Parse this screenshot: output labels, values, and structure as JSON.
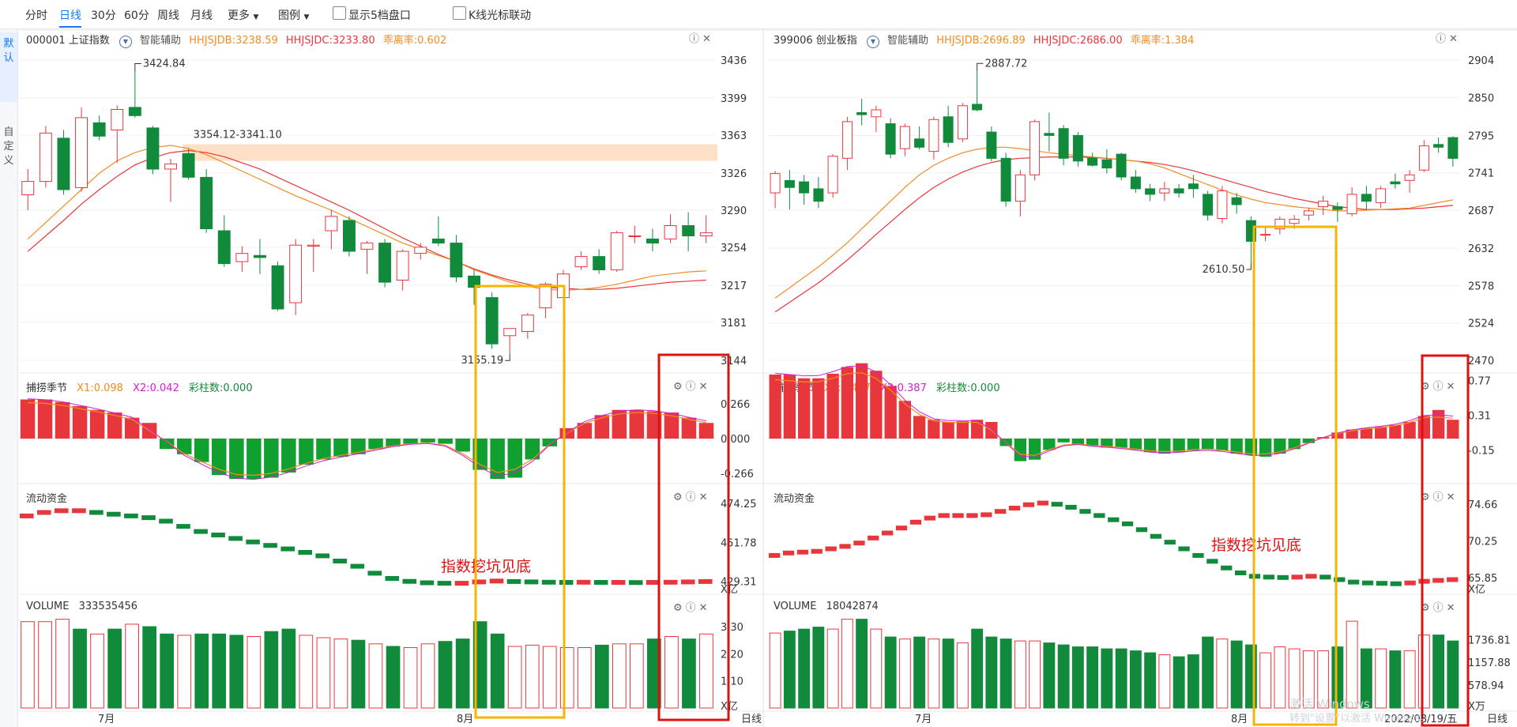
{
  "toolbar": {
    "items": [
      "分时",
      "日线",
      "30分",
      "60分",
      "周线",
      "月线",
      "更多",
      "图例"
    ],
    "active": "日线",
    "chk1": "显示5档盘口",
    "chk2": "K线光标联动"
  },
  "sidebar": {
    "tab1": "默认",
    "tab2": "自定义"
  },
  "panels": [
    {
      "code_name": "000001 上证指数",
      "assist": "智能辅助",
      "hhjsjdb": "HHJSJDB:3238.59",
      "hhjsjdc": "HHJSJDC:3233.80",
      "ratio": "乖离率:0.602",
      "price_ticks": [
        "3436",
        "3399",
        "3363",
        "3326",
        "3290",
        "3254",
        "3217",
        "3181",
        "3144"
      ],
      "high_label": "3424.84",
      "low_label": "3155.19",
      "zone_label": "3354.12-3341.10",
      "ind1": {
        "name": "捕捞季节",
        "x1": "X1:0.098",
        "x2": "X2:0.042",
        "bars": "彩柱数:0.000",
        "ticks": [
          "0.266",
          "0.000",
          "-0.266"
        ]
      },
      "ind2": {
        "name": "流动资金",
        "ticks": [
          "474.25",
          "451.78",
          "429.31"
        ],
        "unit": "X亿"
      },
      "vol": {
        "name": "VOLUME",
        "value": "333535456",
        "ticks": [
          "3.30",
          "2.20",
          "1.10"
        ],
        "unit": "X亿"
      },
      "x_labels": [
        "7月",
        "8月"
      ],
      "annotation": "指数挖坑见底"
    },
    {
      "code_name": "399006 创业板指",
      "assist": "智能辅助",
      "hhjsjdb": "HHJSJDB:2696.89",
      "hhjsjdc": "HHJSJDC:2686.00",
      "ratio": "乖离率:1.384",
      "price_ticks": [
        "2904",
        "2850",
        "2795",
        "2741",
        "2687",
        "2632",
        "2578",
        "2524",
        "2470"
      ],
      "high_label": "2887.72",
      "low_label": "2610.50",
      "zone_label": "",
      "ind1": {
        "name": "捕捞季节",
        "x1": "X1:0.487",
        "x2": "X2:0.387",
        "bars": "彩柱数:0.000",
        "ticks": [
          "0.77",
          "0.31",
          "-0.15"
        ]
      },
      "ind2": {
        "name": "流动资金",
        "ticks": [
          "74.66",
          "70.25",
          "65.85"
        ],
        "unit": "X亿"
      },
      "vol": {
        "name": "VOLUME",
        "value": "18042874",
        "ticks": [
          "1736.81",
          "1157.88",
          "578.94"
        ],
        "unit": "X万"
      },
      "x_labels": [
        "7月",
        "8月"
      ],
      "annotation": "指数挖坑见底",
      "date_label": "2022/08/19/五"
    }
  ],
  "axis_unit_label": "日线",
  "watermark": "激活 Windows 转到\"设置\"以激活 Windows。",
  "colors": {
    "up": "#e8373c",
    "down": "#118a3c",
    "ma_fast": "#f08c24",
    "ma_slow": "#e8373c",
    "zone": "#fde0c7",
    "highlight_orange": "#f4b400",
    "highlight_red": "#e01010"
  },
  "chart_data": [
    {
      "type": "candlestick",
      "title": "000001 上证指数",
      "ylim": [
        3144,
        3436
      ],
      "candles": [
        [
          3305,
          3330,
          3290,
          3318
        ],
        [
          3318,
          3372,
          3312,
          3365
        ],
        [
          3360,
          3368,
          3305,
          3310
        ],
        [
          3312,
          3390,
          3308,
          3380
        ],
        [
          3375,
          3382,
          3358,
          3362
        ],
        [
          3368,
          3392,
          3336,
          3388
        ],
        [
          3390,
          3424.84,
          3380,
          3382
        ],
        [
          3370,
          3372,
          3325,
          3330
        ],
        [
          3330,
          3340,
          3298,
          3335
        ],
        [
          3345,
          3350,
          3320,
          3322
        ],
        [
          3322,
          3330,
          3268,
          3272
        ],
        [
          3270,
          3285,
          3235,
          3238
        ],
        [
          3240,
          3255,
          3230,
          3248
        ],
        [
          3246,
          3262,
          3228,
          3244
        ],
        [
          3236,
          3240,
          3192,
          3194
        ],
        [
          3200,
          3262,
          3188,
          3256
        ],
        [
          3255,
          3262,
          3230,
          3256
        ],
        [
          3270,
          3290,
          3252,
          3284
        ],
        [
          3280,
          3284,
          3245,
          3250
        ],
        [
          3252,
          3260,
          3228,
          3258
        ],
        [
          3258,
          3262,
          3215,
          3220
        ],
        [
          3222,
          3252,
          3212,
          3250
        ],
        [
          3248,
          3258,
          3242,
          3254
        ],
        [
          3262,
          3284,
          3255,
          3258
        ],
        [
          3258,
          3266,
          3220,
          3225
        ],
        [
          3226,
          3232,
          3198,
          3215
        ],
        [
          3205,
          3210,
          3155.19,
          3160
        ],
        [
          3168,
          3175,
          3150,
          3175
        ],
        [
          3172,
          3190,
          3165,
          3188
        ],
        [
          3195,
          3220,
          3185,
          3218
        ],
        [
          3205,
          3232,
          3200,
          3228
        ],
        [
          3235,
          3250,
          3232,
          3245
        ],
        [
          3245,
          3252,
          3228,
          3232
        ],
        [
          3232,
          3270,
          3230,
          3268
        ],
        [
          3265,
          3275,
          3258,
          3265
        ],
        [
          3262,
          3272,
          3250,
          3258
        ],
        [
          3262,
          3286,
          3258,
          3275
        ],
        [
          3275,
          3288,
          3250,
          3265
        ],
        [
          3265,
          3285,
          3258,
          3268
        ]
      ],
      "ma_fast": [
        3262,
        3278,
        3294,
        3310,
        3326,
        3338,
        3346,
        3351,
        3353,
        3350,
        3344,
        3336,
        3328,
        3320,
        3312,
        3304,
        3297,
        3290,
        3282,
        3274,
        3266,
        3258,
        3252,
        3246,
        3240,
        3232,
        3226,
        3220,
        3216,
        3213,
        3212,
        3213,
        3215,
        3218,
        3222,
        3226,
        3228,
        3230,
        3231
      ],
      "ma_slow": [
        3250,
        3265,
        3280,
        3296,
        3310,
        3323,
        3334,
        3341,
        3346,
        3348,
        3346,
        3342,
        3336,
        3330,
        3322,
        3314,
        3306,
        3298,
        3290,
        3281,
        3272,
        3263,
        3255,
        3247,
        3240,
        3233,
        3227,
        3222,
        3218,
        3215,
        3214,
        3213,
        3213,
        3214,
        3216,
        3218,
        3220,
        3221,
        3222
      ],
      "ind1_hist": [
        0.3,
        0.3,
        0.28,
        0.25,
        0.22,
        0.2,
        0.16,
        0.12,
        -0.08,
        -0.12,
        -0.18,
        -0.28,
        -0.31,
        -0.31,
        -0.3,
        -0.26,
        -0.2,
        -0.16,
        -0.14,
        -0.12,
        -0.08,
        -0.06,
        -0.04,
        -0.03,
        -0.04,
        -0.1,
        -0.24,
        -0.31,
        -0.3,
        -0.16,
        -0.06,
        0.08,
        0.12,
        0.18,
        0.22,
        0.22,
        0.21,
        0.2,
        0.16,
        0.12
      ],
      "ind2_vals": [
        467,
        469,
        470,
        470,
        469,
        468,
        467,
        466,
        464,
        461,
        458,
        456,
        454,
        452,
        450,
        448,
        446,
        444,
        441,
        438,
        434,
        431,
        429.31,
        428.5,
        428.2,
        428.2,
        429,
        429.5,
        429.2,
        429,
        428.8,
        428.7,
        428.8,
        428.7,
        428.7,
        428.6,
        428.7,
        428.8,
        429.0,
        429.2
      ],
      "volume": [
        3.5,
        3.5,
        3.6,
        3.2,
        3.0,
        3.2,
        3.4,
        3.3,
        3.0,
        2.95,
        3.0,
        3.0,
        2.95,
        2.9,
        3.1,
        3.2,
        2.95,
        2.85,
        2.8,
        2.75,
        2.6,
        2.5,
        2.45,
        2.6,
        2.7,
        2.8,
        3.5,
        3.0,
        2.5,
        2.55,
        2.5,
        2.45,
        2.45,
        2.55,
        2.6,
        2.6,
        2.8,
        2.9,
        2.8,
        3.0
      ]
    },
    {
      "type": "candlestick",
      "title": "399006 创业板指",
      "ylim": [
        2470,
        2904
      ],
      "candles": [
        [
          2712,
          2744,
          2690,
          2740
        ],
        [
          2730,
          2745,
          2688,
          2720
        ],
        [
          2728,
          2738,
          2695,
          2712
        ],
        [
          2718,
          2735,
          2690,
          2700
        ],
        [
          2712,
          2768,
          2705,
          2765
        ],
        [
          2762,
          2822,
          2745,
          2815
        ],
        [
          2828,
          2848,
          2810,
          2825
        ],
        [
          2822,
          2838,
          2800,
          2832
        ],
        [
          2812,
          2820,
          2762,
          2768
        ],
        [
          2776,
          2812,
          2765,
          2808
        ],
        [
          2790,
          2808,
          2775,
          2778
        ],
        [
          2772,
          2822,
          2760,
          2818
        ],
        [
          2822,
          2838,
          2778,
          2785
        ],
        [
          2790,
          2842,
          2785,
          2838
        ],
        [
          2840,
          2887.72,
          2830,
          2832
        ],
        [
          2800,
          2808,
          2758,
          2762
        ],
        [
          2762,
          2770,
          2692,
          2700
        ],
        [
          2700,
          2745,
          2678,
          2738
        ],
        [
          2738,
          2818,
          2730,
          2815
        ],
        [
          2798,
          2828,
          2772,
          2795
        ],
        [
          2805,
          2810,
          2752,
          2762
        ],
        [
          2795,
          2800,
          2750,
          2758
        ],
        [
          2762,
          2770,
          2750,
          2752
        ],
        [
          2760,
          2775,
          2740,
          2748
        ],
        [
          2768,
          2770,
          2730,
          2735
        ],
        [
          2735,
          2745,
          2712,
          2718
        ],
        [
          2718,
          2725,
          2700,
          2710
        ],
        [
          2712,
          2728,
          2700,
          2718
        ],
        [
          2718,
          2725,
          2705,
          2712
        ],
        [
          2725,
          2738,
          2705,
          2718
        ],
        [
          2710,
          2715,
          2672,
          2680
        ],
        [
          2675,
          2722,
          2668,
          2715
        ],
        [
          2705,
          2712,
          2682,
          2695
        ],
        [
          2672,
          2678,
          2610.5,
          2642
        ],
        [
          2652,
          2662,
          2642,
          2652
        ],
        [
          2660,
          2678,
          2652,
          2674
        ],
        [
          2668,
          2680,
          2660,
          2674
        ],
        [
          2680,
          2690,
          2672,
          2686
        ],
        [
          2692,
          2708,
          2680,
          2700
        ],
        [
          2692,
          2698,
          2670,
          2688
        ],
        [
          2682,
          2720,
          2678,
          2710
        ],
        [
          2710,
          2722,
          2688,
          2700
        ],
        [
          2698,
          2722,
          2690,
          2718
        ],
        [
          2728,
          2740,
          2718,
          2725
        ],
        [
          2730,
          2745,
          2712,
          2738
        ],
        [
          2745,
          2788,
          2742,
          2780
        ],
        [
          2782,
          2792,
          2770,
          2778
        ],
        [
          2792,
          2794,
          2750,
          2762
        ]
      ],
      "ma_fast": [
        2560,
        2575,
        2590,
        2605,
        2622,
        2640,
        2660,
        2680,
        2700,
        2720,
        2738,
        2752,
        2762,
        2770,
        2775,
        2778,
        2778,
        2776,
        2773,
        2770,
        2768,
        2766,
        2764,
        2762,
        2760,
        2758,
        2754,
        2748,
        2740,
        2732,
        2724,
        2716,
        2709,
        2703,
        2698,
        2695,
        2692,
        2690,
        2688,
        2686,
        2686,
        2687,
        2688,
        2689,
        2690,
        2694,
        2698,
        2702
      ],
      "ma_slow": [
        2540,
        2554,
        2568,
        2582,
        2598,
        2615,
        2633,
        2652,
        2670,
        2688,
        2705,
        2720,
        2732,
        2742,
        2750,
        2756,
        2760,
        2762,
        2763,
        2764,
        2764,
        2764,
        2763,
        2762,
        2760,
        2758,
        2756,
        2753,
        2749,
        2744,
        2738,
        2732,
        2726,
        2720,
        2714,
        2709,
        2704,
        2700,
        2696,
        2692,
        2690,
        2688,
        2688,
        2688,
        2689,
        2690,
        2692,
        2694
      ],
      "ind1_hist": [
        0.85,
        0.85,
        0.8,
        0.8,
        0.86,
        0.95,
        1.0,
        0.9,
        0.7,
        0.5,
        0.3,
        0.25,
        0.22,
        0.23,
        0.25,
        0.22,
        -0.1,
        -0.3,
        -0.28,
        -0.15,
        -0.05,
        -0.08,
        -0.1,
        -0.12,
        -0.12,
        -0.15,
        -0.18,
        -0.2,
        -0.18,
        -0.16,
        -0.14,
        -0.16,
        -0.2,
        -0.22,
        -0.24,
        -0.2,
        -0.14,
        -0.06,
        0.02,
        0.08,
        0.12,
        0.14,
        0.16,
        0.18,
        0.22,
        0.3,
        0.38,
        0.25
      ],
      "ind2_vals": [
        68.5,
        68.8,
        68.9,
        69.0,
        69.3,
        69.6,
        70.0,
        70.6,
        71.2,
        71.8,
        72.5,
        73.0,
        73.3,
        73.3,
        73.3,
        73.4,
        73.8,
        74.2,
        74.6,
        74.8,
        74.66,
        74.3,
        73.8,
        73.3,
        72.8,
        72.3,
        71.6,
        70.8,
        70.1,
        69.3,
        68.5,
        67.8,
        67.0,
        66.4,
        66.0,
        65.9,
        65.85,
        65.9,
        66.0,
        65.9,
        65.6,
        65.3,
        65.2,
        65.15,
        65.1,
        65.2,
        65.4,
        65.5,
        65.6
      ],
      "volume": [
        1900,
        1950,
        2000,
        2050,
        2000,
        2250,
        2250,
        2000,
        1800,
        1750,
        1800,
        1750,
        1750,
        1650,
        2000,
        1800,
        1750,
        1700,
        1700,
        1650,
        1600,
        1550,
        1550,
        1500,
        1500,
        1450,
        1400,
        1350,
        1300,
        1350,
        1800,
        1750,
        1700,
        1600,
        1400,
        1550,
        1500,
        1450,
        1450,
        1550,
        2200,
        1500,
        1500,
        1450,
        1450,
        1850,
        1850,
        1700
      ]
    }
  ]
}
